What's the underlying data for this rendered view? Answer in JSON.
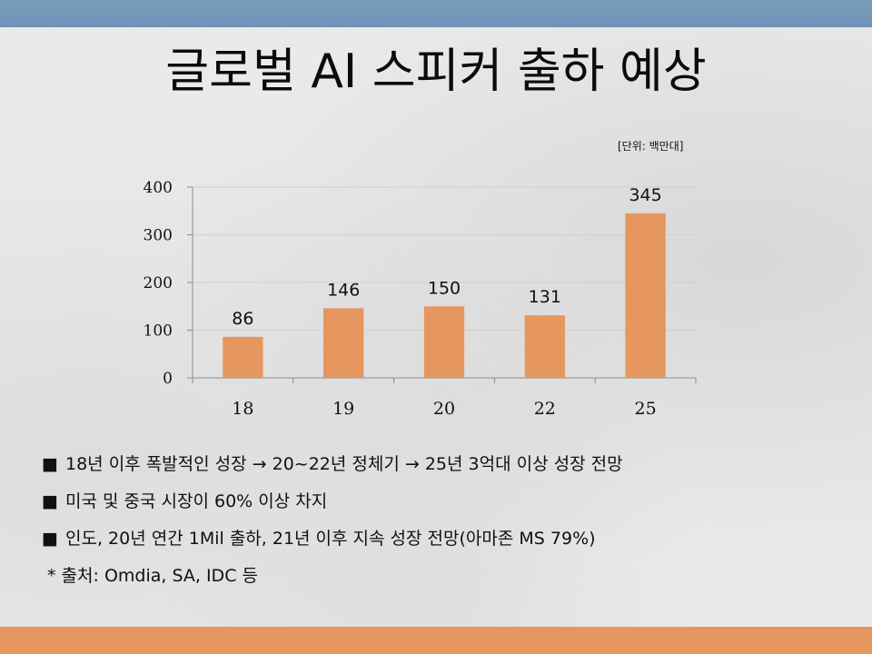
{
  "slide": {
    "title": "글로벌 AI 스피커 출하 예상",
    "unit_note": "[단위: 백만대]",
    "bullet_symbol": "■",
    "bullets": [
      "18년 이후 폭발적인 성장 → 20~22년 정체기 → 25년 3억대 이상 성장 전망",
      "미국 및 중국 시장이 60% 이상 차지",
      "인도, 20년 연간 1Mil 출하, 21년 이후 지속 성장 전망(아마존 MS 79%)"
    ],
    "footnote": "* 출처: Omdia, SA, IDC 등"
  },
  "colors": {
    "top_band": "#7093b6",
    "bottom_band": "#e6965f",
    "bar": "#e6965f",
    "grid": "#d0d0d0",
    "axis": "#8c8c8c"
  },
  "chart_data": {
    "type": "bar",
    "categories": [
      "18",
      "19",
      "20",
      "22",
      "25"
    ],
    "values": [
      86,
      146,
      150,
      131,
      345
    ],
    "ylim": [
      0,
      400
    ],
    "yticks": [
      0,
      100,
      200,
      300,
      400
    ],
    "grid": true,
    "data_labels": true
  }
}
